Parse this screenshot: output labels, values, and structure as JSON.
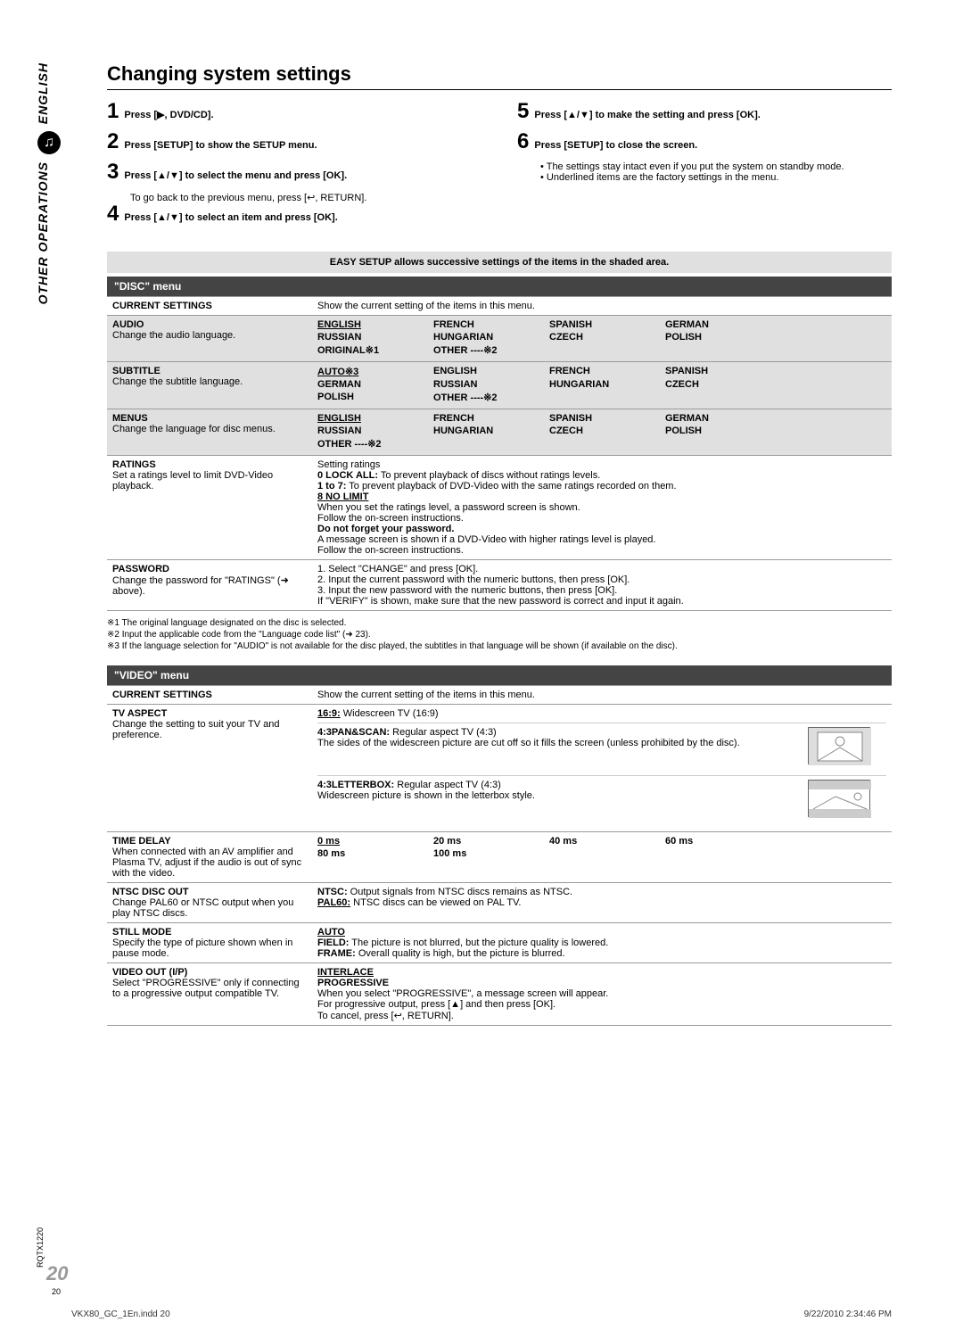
{
  "sidebar": {
    "lang": "ENGLISH",
    "section": "OTHER OPERATIONS"
  },
  "title": "Changing system settings",
  "steps_left": [
    {
      "n": "1",
      "text": "Press [▶, DVD/CD]."
    },
    {
      "n": "2",
      "text": "Press [SETUP] to show the SETUP menu."
    },
    {
      "n": "3",
      "text": "Press [▲/▼] to select the menu and press [OK].",
      "sub": "To go back to the previous menu, press [↩, RETURN]."
    },
    {
      "n": "4",
      "text": "Press [▲/▼] to select an item and press [OK]."
    }
  ],
  "steps_right": [
    {
      "n": "5",
      "text": "Press [▲/▼] to make the setting and press [OK]."
    },
    {
      "n": "6",
      "text": "Press [SETUP] to close the screen."
    }
  ],
  "right_bullets": [
    "The settings stay intact even if you put the system on standby mode.",
    "Underlined items are the factory settings in the menu."
  ],
  "easy_setup": "EASY SETUP allows successive settings of the items in the shaded area.",
  "disc_menu": {
    "header": "\"DISC\" menu",
    "rows": [
      {
        "shaded": false,
        "title": "CURRENT SETTINGS",
        "desc": "",
        "body_text": "Show the current setting of the items in this menu."
      },
      {
        "shaded": true,
        "title": "AUDIO",
        "desc": "Change the audio language.",
        "opts": [
          [
            "ENGLISH",
            true
          ],
          [
            "FRENCH",
            false
          ],
          [
            "SPANISH",
            false
          ],
          [
            "GERMAN",
            false
          ],
          [
            "RUSSIAN",
            false
          ],
          [
            "HUNGARIAN",
            false
          ],
          [
            "CZECH",
            false
          ],
          [
            "POLISH",
            false
          ],
          [
            "ORIGINAL※1",
            false
          ],
          [
            "OTHER ----※2",
            false
          ]
        ]
      },
      {
        "shaded": true,
        "title": "SUBTITLE",
        "desc": "Change the subtitle language.",
        "opts": [
          [
            "AUTO※3",
            true
          ],
          [
            "ENGLISH",
            false
          ],
          [
            "FRENCH",
            false
          ],
          [
            "SPANISH",
            false
          ],
          [
            "GERMAN",
            false
          ],
          [
            "RUSSIAN",
            false
          ],
          [
            "HUNGARIAN",
            false
          ],
          [
            "CZECH",
            false
          ],
          [
            "POLISH",
            false
          ],
          [
            "OTHER ----※2",
            false
          ]
        ]
      },
      {
        "shaded": true,
        "title": "MENUS",
        "desc": "Change the language for disc menus.",
        "opts": [
          [
            "ENGLISH",
            true
          ],
          [
            "FRENCH",
            false
          ],
          [
            "SPANISH",
            false
          ],
          [
            "GERMAN",
            false
          ],
          [
            "RUSSIAN",
            false
          ],
          [
            "HUNGARIAN",
            false
          ],
          [
            "CZECH",
            false
          ],
          [
            "POLISH",
            false
          ],
          [
            "OTHER ----※2",
            false
          ]
        ]
      },
      {
        "shaded": false,
        "title": "RATINGS",
        "desc": "Set a ratings level to limit DVD-Video playback.",
        "body_html": "Setting ratings<br><b>0 LOCK ALL:</b> To prevent playback of discs without ratings levels.<br><b>1 to 7:</b> To prevent playback of DVD-Video with the same ratings recorded on them.<br><b><u>8 NO LIMIT</u></b><br>When you set the ratings level, a password screen is shown.<br>Follow the on-screen instructions.<br><b>Do not forget your password.</b><br>A message screen is shown if a DVD-Video with higher ratings level is played.<br>Follow the on-screen instructions."
      },
      {
        "shaded": false,
        "title": "PASSWORD",
        "desc": "Change the password for \"RATINGS\" (➜ above).",
        "body_html": "1. Select \"CHANGE\" and press [OK].<br>2. Input the current password with the numeric buttons, then press [OK].<br>3. Input the new password with the numeric buttons, then press [OK].<br>If \"VERIFY\" is shown, make sure that the new password is correct and input it again."
      }
    ]
  },
  "footnotes": [
    "※1  The original language designated on the disc is selected.",
    "※2  Input the applicable code from the \"Language code list\" (➜ 23).",
    "※3  If the language selection for \"AUDIO\" is not available for the disc played, the subtitles in that language will be shown (if available on the disc)."
  ],
  "video_menu": {
    "header": "\"VIDEO\" menu",
    "rows": {
      "current": {
        "title": "CURRENT SETTINGS",
        "body": "Show the current setting of the items in this menu."
      },
      "tvaspect": {
        "title": "TV ASPECT",
        "desc": "Change the setting to suit your TV and preference.",
        "body1": "<b><u>16:9:</u></b> Widescreen TV (16:9)",
        "body2": "<b>4:3PAN&SCAN:</b> Regular aspect TV (4:3)<br>The sides of the widescreen picture are cut off so it fills the screen (unless prohibited by the disc).",
        "body3": "<b>4:3LETTERBOX:</b> Regular aspect TV (4:3)<br>Widescreen picture is shown in the letterbox style."
      },
      "timedelay": {
        "title": "TIME DELAY",
        "desc": "When connected with an AV amplifier and Plasma TV, adjust if the audio is out of sync with the video.",
        "opts": [
          [
            "0 ms",
            true
          ],
          [
            "20 ms",
            false
          ],
          [
            "40 ms",
            false
          ],
          [
            "60 ms",
            false
          ],
          [
            "80 ms",
            false
          ],
          [
            "100 ms",
            false
          ]
        ]
      },
      "ntsc": {
        "title": "NTSC DISC OUT",
        "desc": "Change PAL60 or NTSC output when you play NTSC discs.",
        "body": "<b>NTSC:</b> Output signals from NTSC discs remains as NTSC.<br><b><u>PAL60:</u></b> NTSC discs can be viewed on PAL TV."
      },
      "still": {
        "title": "STILL MODE",
        "desc": "Specify the type of picture shown when in pause mode.",
        "body": "<b><u>AUTO</u></b><br><b>FIELD:</b> The picture is not blurred, but the picture quality is lowered.<br><b>FRAME:</b> Overall quality is high, but the picture is blurred."
      },
      "videoout": {
        "title": "VIDEO OUT (I/P)",
        "desc": "Select \"PROGRESSIVE\" only if connecting to a progressive output compatible TV.",
        "body": "<b><u>INTERLACE</u></b><br><b>PROGRESSIVE</b><br>When you select \"PROGRESSIVE\", a message screen will appear.<br>For progressive output, press [▲] and then press [OK].<br>To cancel, press [↩, RETURN]."
      }
    }
  },
  "page_num": "20",
  "page_num_small": "20",
  "rqtx": "RQTX1220",
  "footer": {
    "left": "VKX80_GC_1En.indd   20",
    "right": "9/22/2010   2:34:46 PM"
  }
}
